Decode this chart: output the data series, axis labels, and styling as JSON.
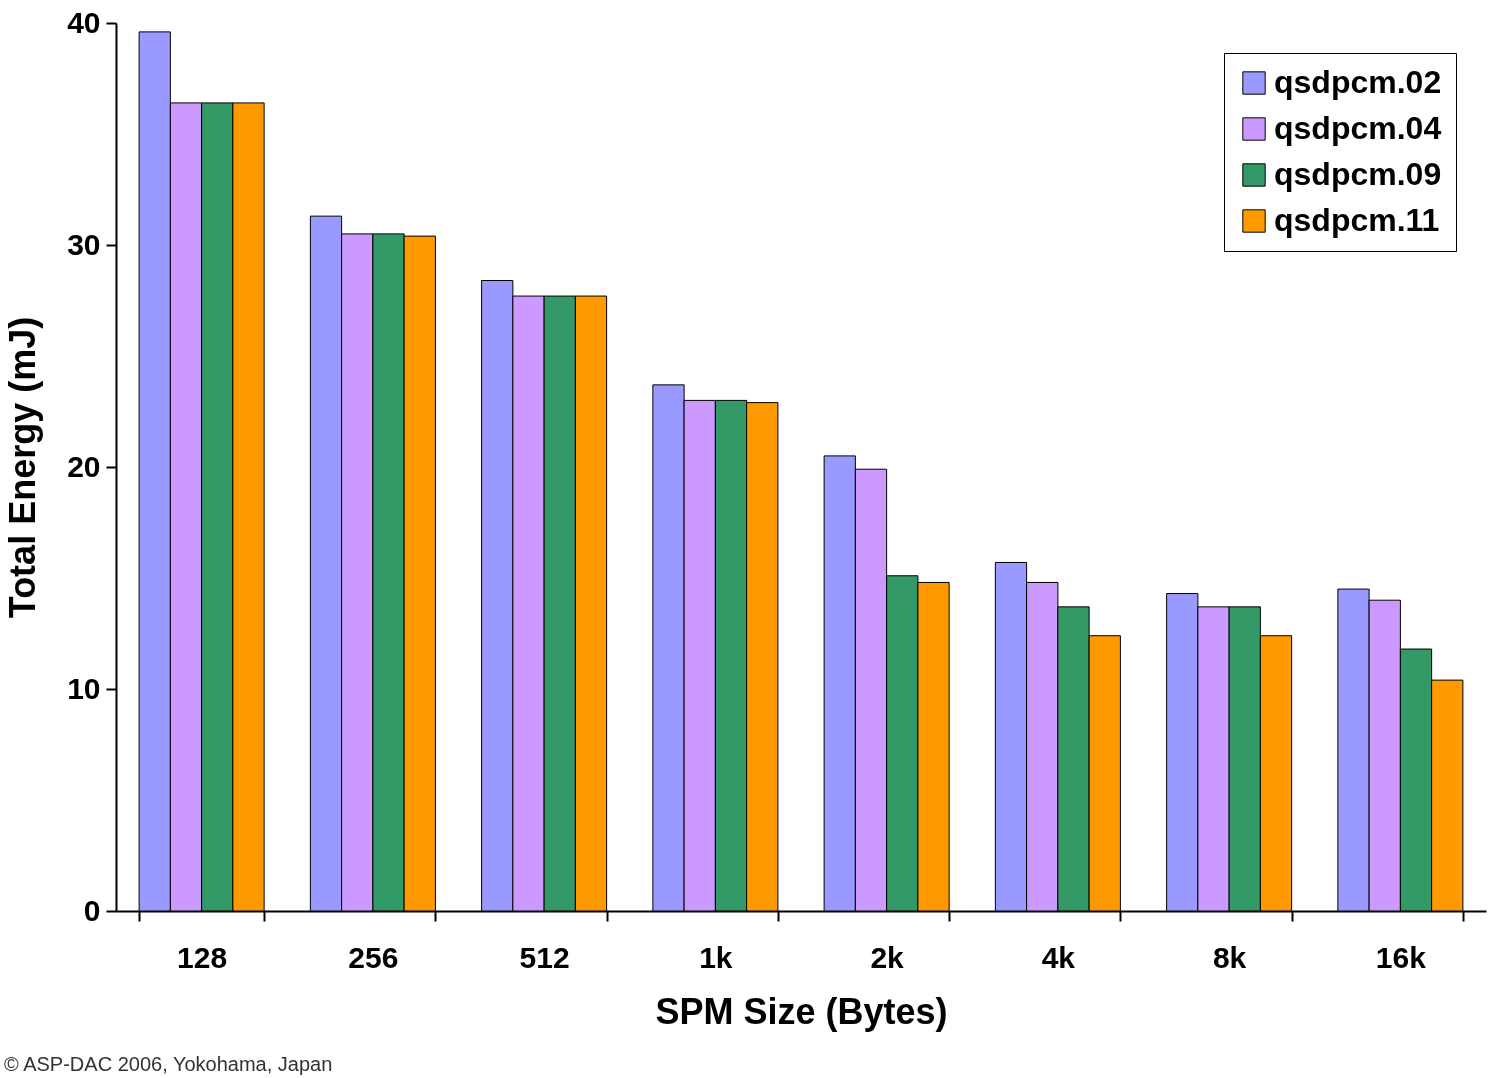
{
  "chart_data": {
    "type": "bar",
    "xlabel": "SPM Size (Bytes)",
    "ylabel": "Total Energy (mJ)",
    "categories": [
      "128",
      "256",
      "512",
      "1k",
      "2k",
      "4k",
      "8k",
      "16k"
    ],
    "series": [
      {
        "name": "qsdpcm.02",
        "color": "#9999ff",
        "values": [
          39.6,
          31.3,
          28.4,
          23.7,
          20.5,
          15.7,
          14.3,
          14.5
        ]
      },
      {
        "name": "qsdpcm.04",
        "color": "#cc99ff",
        "values": [
          36.4,
          30.5,
          27.7,
          23.0,
          19.9,
          14.8,
          13.7,
          14.0
        ]
      },
      {
        "name": "qsdpcm.09",
        "color": "#339966",
        "values": [
          36.4,
          30.5,
          27.7,
          23.0,
          15.1,
          13.7,
          13.7,
          11.8
        ]
      },
      {
        "name": "qsdpcm.11",
        "color": "#ff9900",
        "values": [
          36.4,
          30.4,
          27.7,
          22.9,
          14.8,
          12.4,
          12.4,
          10.4
        ]
      }
    ],
    "ylim": [
      0,
      40
    ],
    "yticks": [
      0,
      10,
      20,
      30,
      40
    ],
    "grid": false,
    "legend": "top right",
    "annotations": [
      "© ASP-DAC 2006, Yokohama, Japan"
    ]
  }
}
